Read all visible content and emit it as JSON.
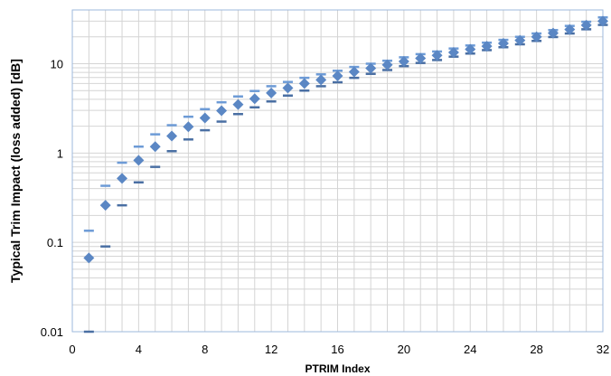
{
  "chart_data": {
    "type": "scatter",
    "title": "",
    "xlabel": "PTRIM Index",
    "ylabel": "Typical Trim Impact (loss added) [dB]",
    "x_ticks": [
      0,
      4,
      8,
      12,
      16,
      20,
      24,
      28,
      32
    ],
    "x_tick_labels": [
      "0",
      "4",
      "8",
      "12",
      "16",
      "20",
      "24",
      "28",
      "32"
    ],
    "xlim": [
      0,
      32
    ],
    "y_scale": "log",
    "ylim": [
      0.01,
      40
    ],
    "y_ticks": [
      0.01,
      0.1,
      1,
      10
    ],
    "y_tick_labels": [
      "0.01",
      "0.1",
      "1",
      "10"
    ],
    "grid": true,
    "colors": {
      "marker": "#5b87c4",
      "upper_bar": "#6d9bd6",
      "lower_bar": "#4a6fa3",
      "grid": "#d4d4d4",
      "axis": "#9eb8dc"
    },
    "x": [
      1,
      2,
      3,
      4,
      5,
      6,
      7,
      8,
      9,
      10,
      11,
      12,
      13,
      14,
      15,
      16,
      17,
      18,
      19,
      20,
      21,
      22,
      23,
      24,
      25,
      26,
      27,
      28,
      29,
      30,
      31,
      32
    ],
    "typical": [
      0.067,
      0.26,
      0.52,
      0.83,
      1.18,
      1.55,
      1.97,
      2.47,
      2.98,
      3.5,
      4.05,
      4.7,
      5.35,
      6.0,
      6.6,
      7.3,
      8.1,
      8.9,
      9.7,
      10.6,
      11.5,
      12.4,
      13.4,
      14.5,
      15.7,
      16.9,
      18.3,
      20.0,
      22.0,
      24.2,
      27.0,
      30.0
    ],
    "upper": [
      0.135,
      0.43,
      0.78,
      1.18,
      1.62,
      2.05,
      2.55,
      3.1,
      3.7,
      4.3,
      4.95,
      5.6,
      6.25,
      6.95,
      7.6,
      8.35,
      9.2,
      10.0,
      10.8,
      11.8,
      12.8,
      13.7,
      14.8,
      16.0,
      17.2,
      18.5,
      20.0,
      21.8,
      23.8,
      26.5,
      29.5,
      33.0
    ],
    "lower": [
      0.01,
      0.09,
      0.26,
      0.47,
      0.7,
      1.05,
      1.42,
      1.8,
      2.25,
      2.73,
      3.25,
      3.78,
      4.4,
      5.0,
      5.6,
      6.2,
      6.95,
      7.7,
      8.5,
      9.4,
      10.2,
      11.0,
      12.0,
      13.0,
      14.2,
      15.3,
      16.5,
      18.0,
      19.9,
      21.8,
      24.3,
      27.2
    ]
  }
}
